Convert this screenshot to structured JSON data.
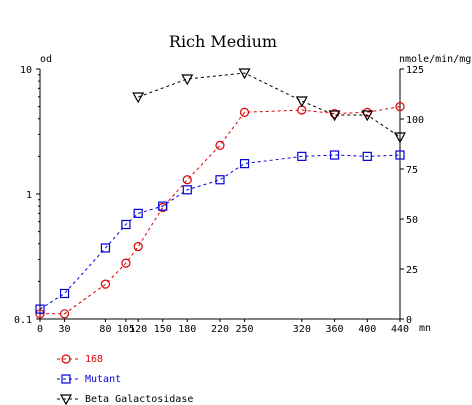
{
  "chart_data": {
    "type": "line",
    "title": "Rich Medium",
    "x_unit": "mn",
    "xlim": [
      0,
      440
    ],
    "x_ticks": [
      0,
      30,
      80,
      105,
      120,
      150,
      180,
      220,
      250,
      320,
      360,
      400,
      440
    ],
    "x_tick_labels": [
      "0",
      "30",
      "80",
      "105",
      "120",
      "150",
      "180",
      "220",
      "250",
      "320",
      "360",
      "400",
      "440"
    ],
    "y_left": {
      "label": "od",
      "scale": "log",
      "lim": [
        0.1,
        10
      ],
      "ticks": [
        0.1,
        1,
        10
      ],
      "tick_labels": [
        "0.1",
        "1",
        "10"
      ]
    },
    "y_right": {
      "label": "nmole/min/mg",
      "scale": "linear",
      "lim": [
        0,
        125
      ],
      "ticks": [
        0,
        25,
        50,
        75,
        100,
        125
      ],
      "tick_labels": [
        "0",
        "25",
        "50",
        "75",
        "100",
        "125"
      ]
    },
    "grid": false,
    "legend_position": "bottom-left",
    "series": [
      {
        "name": "168",
        "axis": "left",
        "color": "#dd0000",
        "marker": "circle",
        "x": [
          0,
          30,
          80,
          105,
          120,
          150,
          180,
          220,
          250,
          320,
          360,
          400,
          440
        ],
        "y": [
          0.11,
          0.11,
          0.19,
          0.28,
          0.38,
          0.78,
          1.3,
          2.45,
          4.5,
          4.7,
          4.4,
          4.5,
          5.0
        ]
      },
      {
        "name": "Mutant",
        "axis": "left",
        "color": "#0000dd",
        "marker": "square",
        "x": [
          0,
          30,
          80,
          105,
          120,
          150,
          180,
          220,
          250,
          320,
          360,
          400,
          440
        ],
        "y": [
          0.12,
          0.16,
          0.37,
          0.57,
          0.7,
          0.8,
          1.08,
          1.3,
          1.75,
          2.0,
          2.05,
          2.0,
          2.05
        ]
      },
      {
        "name": "Beta Galactosidase",
        "axis": "right",
        "color": "#000000",
        "marker": "triangle-down",
        "x": [
          120,
          180,
          250,
          320,
          360,
          400,
          440
        ],
        "y": [
          111,
          120,
          123,
          109,
          102,
          102,
          91
        ]
      }
    ]
  }
}
